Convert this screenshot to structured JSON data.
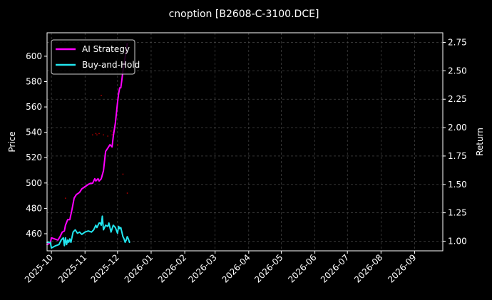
{
  "chart_data": {
    "type": "line",
    "title": "cnoption [B2608-C-3100.DCE]",
    "xlabel": "",
    "ylabel_left": "Price",
    "ylabel_right": "Return",
    "x_ticks": [
      "2025-10",
      "2025-11",
      "2025-12",
      "2026-01",
      "2026-02",
      "2026-03",
      "2026-04",
      "2026-05",
      "2026-06",
      "2026-07",
      "2026-08",
      "2026-09"
    ],
    "x_range": [
      "2025-09-27",
      "2026-09-27"
    ],
    "y_left_ticks": [
      460,
      480,
      500,
      520,
      540,
      560,
      580,
      600
    ],
    "y_left_range": [
      446.5,
      618.5
    ],
    "y_right_ticks": [
      1.0,
      1.25,
      1.5,
      1.75,
      2.0,
      2.25,
      2.5,
      2.75
    ],
    "y_right_range": [
      0.915,
      2.835
    ],
    "grid": true,
    "legend_placement": "top-left",
    "background": "#000000",
    "series": [
      {
        "name": "AI Strategy",
        "axis": "right",
        "color": "#ff00ff",
        "points": [
          [
            "2025-09-27",
            0.97
          ],
          [
            "2025-09-29",
            0.98
          ],
          [
            "2025-09-30",
            0.985
          ],
          [
            "2025-10-01",
            1.03
          ],
          [
            "2025-10-04",
            1.02
          ],
          [
            "2025-10-07",
            1.01
          ],
          [
            "2025-10-09",
            1.04
          ],
          [
            "2025-10-11",
            1.08
          ],
          [
            "2025-10-13",
            1.09
          ],
          [
            "2025-10-14",
            1.14
          ],
          [
            "2025-10-16",
            1.19
          ],
          [
            "2025-10-18",
            1.19
          ],
          [
            "2025-10-20",
            1.28
          ],
          [
            "2025-10-22",
            1.38
          ],
          [
            "2025-10-24",
            1.41
          ],
          [
            "2025-10-27",
            1.43
          ],
          [
            "2025-10-29",
            1.46
          ],
          [
            "2025-11-01",
            1.48
          ],
          [
            "2025-11-04",
            1.5
          ],
          [
            "2025-11-06",
            1.51
          ],
          [
            "2025-11-08",
            1.51
          ],
          [
            "2025-11-10",
            1.55
          ],
          [
            "2025-11-11",
            1.53
          ],
          [
            "2025-11-13",
            1.55
          ],
          [
            "2025-11-14",
            1.53
          ],
          [
            "2025-11-16",
            1.55
          ],
          [
            "2025-11-18",
            1.62
          ],
          [
            "2025-11-20",
            1.79
          ],
          [
            "2025-11-22",
            1.82
          ],
          [
            "2025-11-24",
            1.85
          ],
          [
            "2025-11-26",
            1.83
          ],
          [
            "2025-11-27",
            1.92
          ],
          [
            "2025-11-29",
            2.04
          ],
          [
            "2025-12-01",
            2.22
          ],
          [
            "2025-12-02",
            2.3
          ],
          [
            "2025-12-03",
            2.35
          ],
          [
            "2025-12-04",
            2.35
          ],
          [
            "2025-12-05",
            2.42
          ],
          [
            "2025-12-06",
            2.5
          ],
          [
            "2025-12-07",
            2.55
          ],
          [
            "2025-12-08",
            2.62
          ],
          [
            "2025-12-09",
            2.68
          ],
          [
            "2025-12-10",
            2.74
          ]
        ]
      },
      {
        "name": "Buy-and-Hold",
        "axis": "right",
        "color": "#22e5ee",
        "points": [
          [
            "2025-09-27",
            0.99
          ],
          [
            "2025-09-30",
            0.99
          ],
          [
            "2025-10-01",
            0.94
          ],
          [
            "2025-10-05",
            0.96
          ],
          [
            "2025-10-08",
            0.97
          ],
          [
            "2025-10-10",
            1.01
          ],
          [
            "2025-10-12",
            1.03
          ],
          [
            "2025-10-13",
            0.96
          ],
          [
            "2025-10-14",
            1.03
          ],
          [
            "2025-10-15",
            0.97
          ],
          [
            "2025-10-16",
            1.01
          ],
          [
            "2025-10-17",
            0.99
          ],
          [
            "2025-10-18",
            1.02
          ],
          [
            "2025-10-19",
            0.99
          ],
          [
            "2025-10-21",
            1.08
          ],
          [
            "2025-10-23",
            1.1
          ],
          [
            "2025-10-25",
            1.07
          ],
          [
            "2025-10-27",
            1.08
          ],
          [
            "2025-10-29",
            1.06
          ],
          [
            "2025-11-01",
            1.08
          ],
          [
            "2025-11-04",
            1.09
          ],
          [
            "2025-11-07",
            1.08
          ],
          [
            "2025-11-09",
            1.1
          ],
          [
            "2025-11-11",
            1.14
          ],
          [
            "2025-11-12",
            1.12
          ],
          [
            "2025-11-14",
            1.16
          ],
          [
            "2025-11-15",
            1.16
          ],
          [
            "2025-11-16",
            1.14
          ],
          [
            "2025-11-17",
            1.22
          ],
          [
            "2025-11-18",
            1.1
          ],
          [
            "2025-11-20",
            1.14
          ],
          [
            "2025-11-22",
            1.13
          ],
          [
            "2025-11-23",
            1.16
          ],
          [
            "2025-11-25",
            1.08
          ],
          [
            "2025-11-27",
            1.14
          ],
          [
            "2025-11-29",
            1.12
          ],
          [
            "2025-12-01",
            1.07
          ],
          [
            "2025-12-02",
            1.13
          ],
          [
            "2025-12-03",
            1.11
          ],
          [
            "2025-12-04",
            1.12
          ],
          [
            "2025-12-05",
            1.08
          ],
          [
            "2025-12-06",
            1.04
          ],
          [
            "2025-12-07",
            1.02
          ],
          [
            "2025-12-08",
            0.99
          ],
          [
            "2025-12-09",
            1.01
          ],
          [
            "2025-12-10",
            1.04
          ],
          [
            "2025-12-11",
            1.02
          ],
          [
            "2025-12-12",
            0.99
          ]
        ]
      }
    ],
    "scatter": {
      "axis": "left",
      "color": "#aa0000",
      "points": [
        [
          "2025-10-14",
          488
        ],
        [
          "2025-11-08",
          538
        ],
        [
          "2025-11-11",
          539
        ],
        [
          "2025-11-12",
          538
        ],
        [
          "2025-11-14",
          539
        ],
        [
          "2025-11-16",
          569
        ],
        [
          "2025-11-18",
          538
        ],
        [
          "2025-11-22",
          537
        ],
        [
          "2025-11-25",
          541
        ],
        [
          "2025-11-26",
          538
        ],
        [
          "2025-11-27",
          540
        ],
        [
          "2025-12-01",
          530
        ],
        [
          "2025-12-06",
          507
        ],
        [
          "2025-12-10",
          492
        ]
      ]
    }
  }
}
